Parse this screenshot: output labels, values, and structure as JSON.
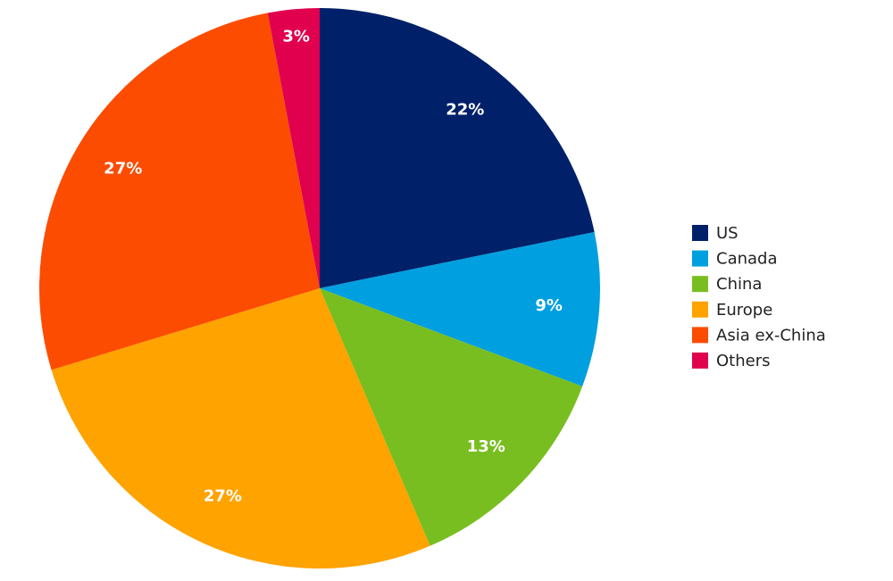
{
  "chart_data": {
    "type": "pie",
    "categories": [
      "US",
      "Canada",
      "China",
      "Europe",
      "Asia ex-China",
      "Others"
    ],
    "values": [
      22,
      9,
      13,
      27,
      27,
      3
    ],
    "value_labels": [
      "22%",
      "9%",
      "13%",
      "27%",
      "27%",
      "3%"
    ],
    "colors": [
      "#002169",
      "#009fdf",
      "#78be20",
      "#ffa300",
      "#fc4c02",
      "#e0004d"
    ],
    "legend": "right"
  }
}
